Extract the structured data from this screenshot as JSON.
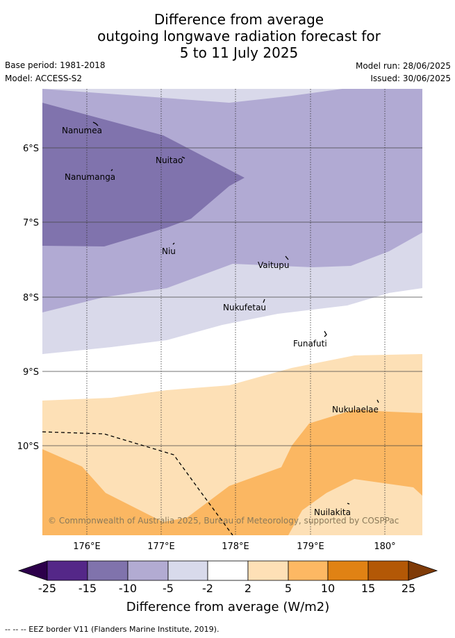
{
  "title": {
    "line1": "Difference from average",
    "line2": "outgoing longwave radiation forecast for",
    "line3": "5 to 11 July 2025"
  },
  "meta": {
    "base_period": "Base period: 1981-2018",
    "model": "Model: ACCESS-S2",
    "model_run": "Model run: 28/06/2025",
    "issued": "Issued: 30/06/2025"
  },
  "map": {
    "lat_ticks": [
      "6°S",
      "7°S",
      "8°S",
      "9°S",
      "10°S"
    ],
    "lon_ticks": [
      "176°E",
      "177°E",
      "178°E",
      "179°E",
      "180°"
    ],
    "places": [
      "Nanumea",
      "Nuitao",
      "Nanumanga",
      "Niu",
      "Vaitupu",
      "Nukufetau",
      "Funafuti",
      "Nukulaelae",
      "Nuilakita"
    ],
    "credit": "© Commonwealth of Australia 2025, Bureau of Meteorology, supported by COSPPac",
    "colors": {
      "lt_-15": "#8073ad",
      "-10_-5": "#b1aad3",
      "-5_-2": "#d9d9ea",
      "-2_2": "#ffffff",
      "2_5": "#fde0b6",
      "5_10": "#fbb762",
      "grid": "#333333"
    }
  },
  "colorbar": {
    "ticks": [
      "-25",
      "-15",
      "-10",
      "-5",
      "-2",
      "2",
      "5",
      "10",
      "15",
      "25"
    ],
    "colors": [
      "#2d004b",
      "#542788",
      "#8073ac",
      "#b2abd2",
      "#d8daeb",
      "#ffffff",
      "#fee0b6",
      "#fdb863",
      "#e08214",
      "#b35806",
      "#7f3b08"
    ],
    "label": "Difference from average (W/m2)"
  },
  "footnote": "--  --  -- EEZ border V11 (Flanders Marine Institute, 2019)."
}
